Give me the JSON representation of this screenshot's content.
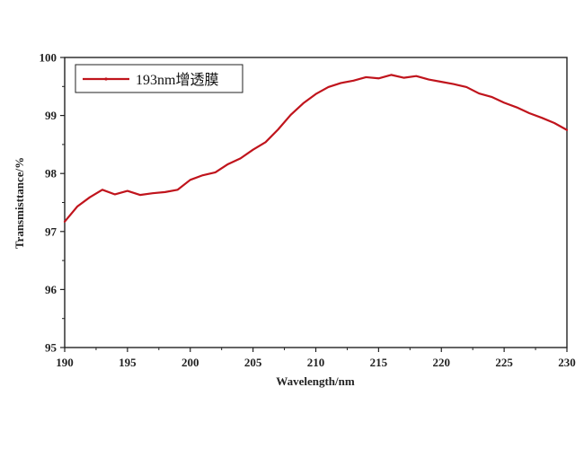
{
  "chart_data": {
    "type": "line",
    "title": "",
    "xlabel": "Wavelength/nm",
    "ylabel": "Transmisttance/%",
    "xlim": [
      190,
      230
    ],
    "ylim": [
      95,
      100
    ],
    "x_ticks": [
      190,
      195,
      200,
      205,
      210,
      215,
      220,
      225,
      230
    ],
    "y_ticks": [
      95,
      96,
      97,
      98,
      99,
      100
    ],
    "grid": false,
    "legend_position": "top-left",
    "colors": {
      "series": "#c0141c",
      "axis": "#222222",
      "background": "#ffffff"
    },
    "series": [
      {
        "name": "193nm增透膜",
        "x": [
          190,
          191,
          192,
          193,
          194,
          195,
          196,
          197,
          198,
          199,
          200,
          201,
          202,
          203,
          204,
          205,
          206,
          207,
          208,
          209,
          210,
          211,
          212,
          213,
          214,
          215,
          216,
          217,
          218,
          219,
          220,
          221,
          222,
          223,
          224,
          225,
          226,
          227,
          228,
          229,
          230
        ],
        "y": [
          97.17,
          97.43,
          97.59,
          97.72,
          97.64,
          97.7,
          97.63,
          97.66,
          97.68,
          97.72,
          97.89,
          97.97,
          98.02,
          98.16,
          98.26,
          98.41,
          98.54,
          98.76,
          99.01,
          99.21,
          99.37,
          99.49,
          99.56,
          99.6,
          99.66,
          99.64,
          99.7,
          99.65,
          99.68,
          99.62,
          99.58,
          99.54,
          99.49,
          99.38,
          99.32,
          99.22,
          99.14,
          99.04,
          98.96,
          98.87,
          98.75
        ]
      }
    ]
  }
}
